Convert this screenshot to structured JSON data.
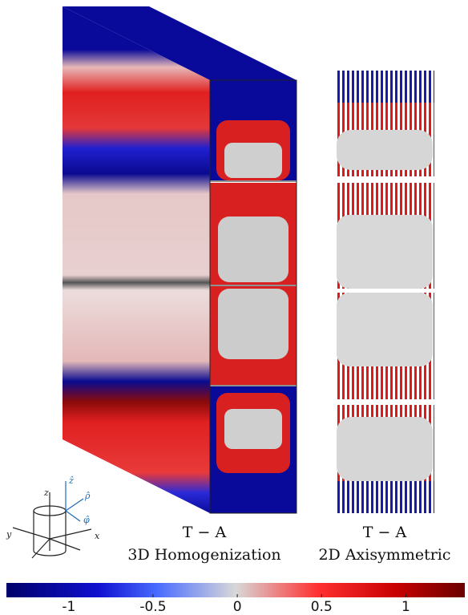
{
  "panels": [
    {
      "method": "T − A",
      "label": "3D Homogenization"
    },
    {
      "method": "T − A",
      "label": "2D Axisymmetric"
    }
  ],
  "axes_icon": {
    "labels": [
      "z",
      "y",
      "x",
      "ẑ",
      "ρ̂",
      "φ̂"
    ]
  },
  "colorbar": {
    "range": [
      -1.37,
      1.35
    ],
    "ticks": [
      -1,
      -0.5,
      0,
      0.5,
      1
    ]
  }
}
